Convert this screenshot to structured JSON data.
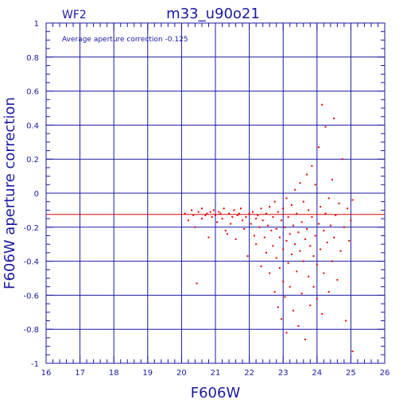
{
  "panel_label": "WF2",
  "title": "m33_u90o21",
  "annotation": "Average aperture correction  -0.125",
  "colors": {
    "axis": "#1a1aa0",
    "points": "#e60000",
    "mean_line": "#e60000",
    "background": "#ffffff"
  },
  "chart_data": {
    "type": "scatter",
    "title": "m33_u90o21",
    "xlabel": "F606W",
    "ylabel": "F606W aperture correction",
    "xlim": [
      16,
      26
    ],
    "ylim": [
      -1,
      1
    ],
    "x_ticks": [
      16,
      17,
      18,
      19,
      20,
      21,
      22,
      23,
      24,
      25,
      26
    ],
    "y_ticks": [
      -1,
      -0.8,
      -0.6,
      -0.4,
      -0.2,
      0,
      0.2,
      0.4,
      0.6,
      0.8,
      1
    ],
    "x_tick_labels": [
      "16",
      "17",
      "18",
      "19",
      "20",
      "21",
      "22",
      "23",
      "24",
      "25",
      "26"
    ],
    "y_tick_labels": [
      "-1",
      "-0.8",
      "-0.6",
      "-0.4",
      "-0.2",
      "0",
      "0.2",
      "0.4",
      "0.6",
      "0.8",
      "1"
    ],
    "grid": true,
    "reference_line": {
      "y": -0.125
    },
    "points": [
      [
        20.1,
        -0.12
      ],
      [
        20.2,
        -0.16
      ],
      [
        20.3,
        -0.1
      ],
      [
        20.35,
        -0.13
      ],
      [
        20.4,
        -0.2
      ],
      [
        20.45,
        -0.53
      ],
      [
        20.5,
        -0.11
      ],
      [
        20.6,
        -0.09
      ],
      [
        20.6,
        -0.15
      ],
      [
        20.7,
        -0.13
      ],
      [
        20.75,
        -0.12
      ],
      [
        20.8,
        -0.26
      ],
      [
        20.85,
        -0.11
      ],
      [
        20.9,
        -0.14
      ],
      [
        20.95,
        -0.1
      ],
      [
        21.0,
        -0.13
      ],
      [
        21.05,
        -0.17
      ],
      [
        21.1,
        -0.11
      ],
      [
        21.15,
        -0.12
      ],
      [
        21.2,
        -0.15
      ],
      [
        21.25,
        -0.09
      ],
      [
        21.3,
        -0.22
      ],
      [
        21.35,
        -0.24
      ],
      [
        21.4,
        -0.12
      ],
      [
        21.45,
        -0.18
      ],
      [
        21.5,
        -0.14
      ],
      [
        21.55,
        -0.1
      ],
      [
        21.6,
        -0.27
      ],
      [
        21.65,
        -0.13
      ],
      [
        21.7,
        -0.12
      ],
      [
        21.75,
        -0.09
      ],
      [
        21.8,
        -0.16
      ],
      [
        21.85,
        -0.21
      ],
      [
        21.9,
        -0.14
      ],
      [
        21.95,
        -0.37
      ],
      [
        22.0,
        -0.12
      ],
      [
        22.05,
        -0.18
      ],
      [
        22.1,
        -0.11
      ],
      [
        22.15,
        -0.25
      ],
      [
        22.2,
        -0.15
      ],
      [
        22.2,
        -0.3
      ],
      [
        22.25,
        -0.13
      ],
      [
        22.3,
        -0.2
      ],
      [
        22.35,
        -0.09
      ],
      [
        22.35,
        -0.43
      ],
      [
        22.4,
        -0.16
      ],
      [
        22.45,
        -0.26
      ],
      [
        22.5,
        -0.12
      ],
      [
        22.5,
        -0.35
      ],
      [
        22.55,
        -0.19
      ],
      [
        22.6,
        -0.08
      ],
      [
        22.6,
        -0.47
      ],
      [
        22.65,
        -0.22
      ],
      [
        22.7,
        -0.14
      ],
      [
        22.7,
        -0.31
      ],
      [
        22.75,
        -0.05
      ],
      [
        22.75,
        -0.58
      ],
      [
        22.8,
        -0.21
      ],
      [
        22.8,
        -0.38
      ],
      [
        22.85,
        -0.11
      ],
      [
        22.85,
        -0.67
      ],
      [
        22.9,
        -0.26
      ],
      [
        22.9,
        -0.44
      ],
      [
        22.95,
        -0.16
      ],
      [
        22.95,
        -0.74
      ],
      [
        23.0,
        -0.09
      ],
      [
        23.0,
        -0.33
      ],
      [
        23.0,
        -0.52
      ],
      [
        23.05,
        -0.2
      ],
      [
        23.05,
        -0.61
      ],
      [
        23.1,
        -0.03
      ],
      [
        23.1,
        -0.28
      ],
      [
        23.1,
        -0.82
      ],
      [
        23.15,
        -0.14
      ],
      [
        23.15,
        -0.41
      ],
      [
        23.2,
        -0.24
      ],
      [
        23.2,
        -0.55
      ],
      [
        23.25,
        -0.07
      ],
      [
        23.25,
        -0.36
      ],
      [
        23.3,
        -0.19
      ],
      [
        23.3,
        -0.69
      ],
      [
        23.35,
        0.02
      ],
      [
        23.35,
        -0.3
      ],
      [
        23.4,
        -0.12
      ],
      [
        23.4,
        -0.46
      ],
      [
        23.45,
        -0.23
      ],
      [
        23.45,
        -0.78
      ],
      [
        23.5,
        0.06
      ],
      [
        23.5,
        -0.34
      ],
      [
        23.55,
        -0.17
      ],
      [
        23.55,
        -0.59
      ],
      [
        23.6,
        -0.05
      ],
      [
        23.6,
        -0.4
      ],
      [
        23.65,
        -0.27
      ],
      [
        23.65,
        -0.86
      ],
      [
        23.7,
        0.11
      ],
      [
        23.7,
        -0.21
      ],
      [
        23.75,
        -0.49
      ],
      [
        23.75,
        -0.1
      ],
      [
        23.8,
        -0.31
      ],
      [
        23.8,
        -0.66
      ],
      [
        23.85,
        0.16
      ],
      [
        23.85,
        -0.14
      ],
      [
        23.9,
        -0.37
      ],
      [
        23.9,
        -0.55
      ],
      [
        23.95,
        0.05
      ],
      [
        23.95,
        -0.25
      ],
      [
        24.0,
        -0.62
      ],
      [
        24.0,
        -0.42
      ],
      [
        24.05,
        -0.18
      ],
      [
        24.05,
        0.27
      ],
      [
        24.1,
        -0.33
      ],
      [
        24.1,
        -0.08
      ],
      [
        24.15,
        0.52
      ],
      [
        24.15,
        -0.71
      ],
      [
        24.2,
        -0.22
      ],
      [
        24.2,
        -0.47
      ],
      [
        24.25,
        0.39
      ],
      [
        24.25,
        -0.12
      ],
      [
        24.3,
        -0.29
      ],
      [
        24.35,
        -0.03
      ],
      [
        24.35,
        -0.58
      ],
      [
        24.4,
        -0.19
      ],
      [
        24.45,
        0.08
      ],
      [
        24.45,
        -0.4
      ],
      [
        24.5,
        0.44
      ],
      [
        24.5,
        -0.26
      ],
      [
        24.55,
        -0.13
      ],
      [
        24.6,
        -0.51
      ],
      [
        24.65,
        -0.06
      ],
      [
        24.7,
        -0.34
      ],
      [
        24.75,
        0.2
      ],
      [
        24.8,
        -0.2
      ],
      [
        24.85,
        -0.75
      ],
      [
        24.9,
        -0.09
      ],
      [
        24.95,
        -0.28
      ],
      [
        25.0,
        -0.16
      ],
      [
        25.05,
        -0.93
      ],
      [
        25.05,
        -0.04
      ]
    ]
  }
}
